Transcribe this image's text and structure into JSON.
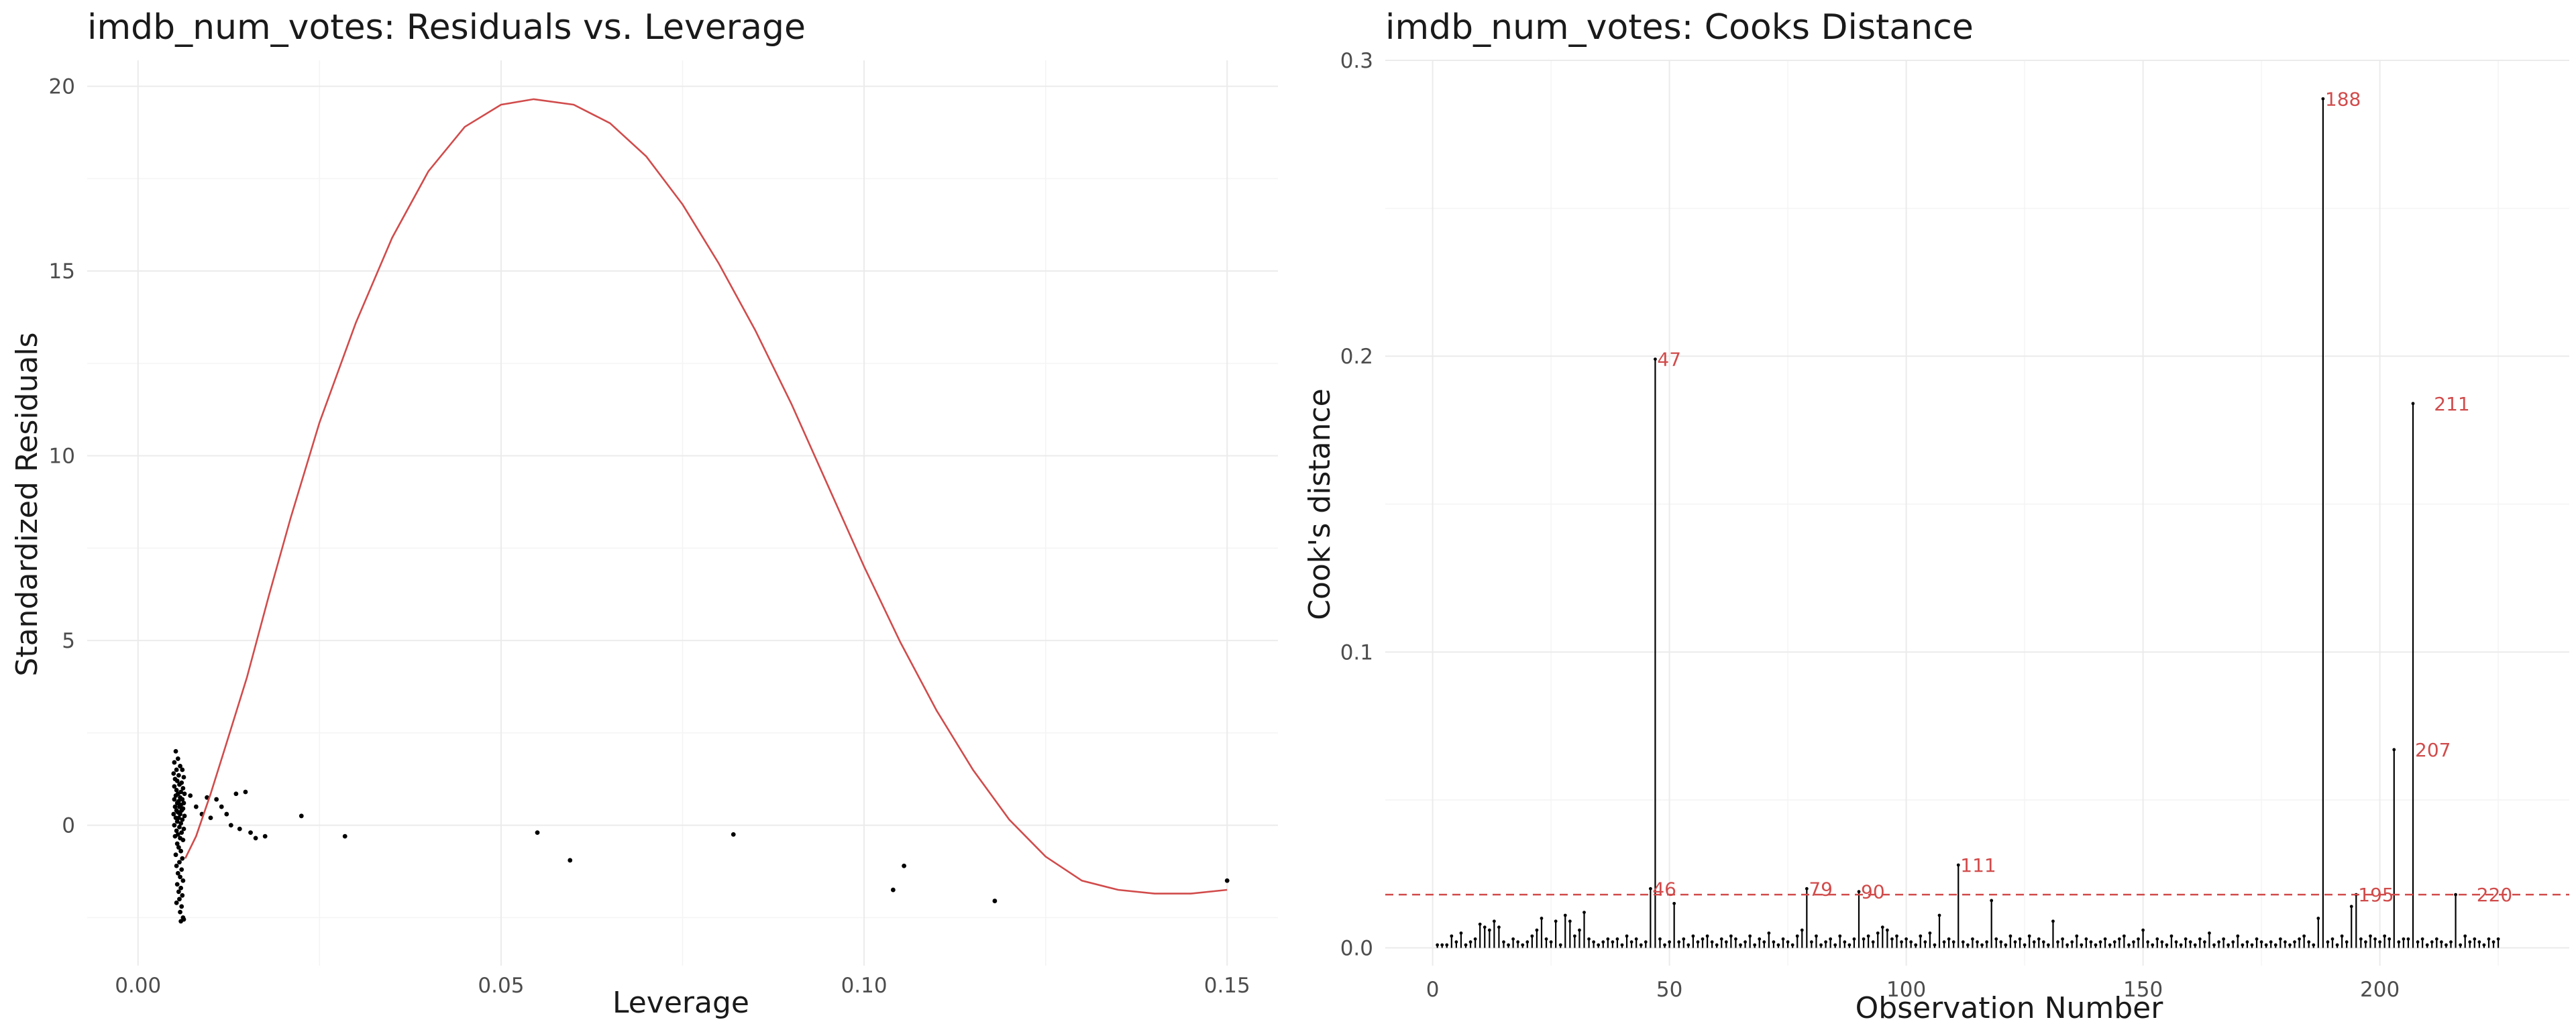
{
  "chart_data": [
    {
      "type": "scatter",
      "title": "imdb_num_votes: Residuals vs. Leverage",
      "xlabel": "Leverage",
      "ylabel": "Standardized Residuals",
      "xlim": [
        -0.007,
        0.157
      ],
      "ylim": [
        -3.8,
        20.7
      ],
      "xticks": [
        0,
        0.05,
        0.1,
        0.15
      ],
      "xtick_labels": [
        "0.00",
        "0.05",
        "0.10",
        "0.15"
      ],
      "yticks": [
        0,
        5,
        10,
        15,
        20
      ],
      "ytick_labels": [
        "0",
        "5",
        "10",
        "15",
        "20"
      ],
      "grid": true,
      "smooth_color": "#d14b4b",
      "point_color": "#000000",
      "points": [
        [
          0.0052,
          2.0
        ],
        [
          0.0055,
          1.8
        ],
        [
          0.005,
          1.7
        ],
        [
          0.0058,
          1.6
        ],
        [
          0.0053,
          1.5
        ],
        [
          0.0061,
          1.5
        ],
        [
          0.0049,
          1.4
        ],
        [
          0.0056,
          1.35
        ],
        [
          0.0063,
          1.3
        ],
        [
          0.0051,
          1.25
        ],
        [
          0.0054,
          1.2
        ],
        [
          0.006,
          1.15
        ],
        [
          0.0057,
          1.1
        ],
        [
          0.005,
          1.05
        ],
        [
          0.0062,
          1.0
        ],
        [
          0.0053,
          0.95
        ],
        [
          0.0059,
          0.9
        ],
        [
          0.0055,
          0.85
        ],
        [
          0.0064,
          0.85
        ],
        [
          0.0052,
          0.8
        ],
        [
          0.0058,
          0.75
        ],
        [
          0.0061,
          0.7
        ],
        [
          0.005,
          0.7
        ],
        [
          0.0056,
          0.65
        ],
        [
          0.0054,
          0.6
        ],
        [
          0.0063,
          0.6
        ],
        [
          0.0059,
          0.55
        ],
        [
          0.0051,
          0.5
        ],
        [
          0.0057,
          0.5
        ],
        [
          0.0062,
          0.45
        ],
        [
          0.0053,
          0.4
        ],
        [
          0.006,
          0.4
        ],
        [
          0.0055,
          0.35
        ],
        [
          0.0049,
          0.3
        ],
        [
          0.0058,
          0.3
        ],
        [
          0.0064,
          0.25
        ],
        [
          0.0052,
          0.2
        ],
        [
          0.0056,
          0.2
        ],
        [
          0.0061,
          0.15
        ],
        [
          0.0054,
          0.1
        ],
        [
          0.0059,
          0.05
        ],
        [
          0.005,
          0.0
        ],
        [
          0.0057,
          -0.05
        ],
        [
          0.0063,
          -0.1
        ],
        [
          0.0053,
          -0.15
        ],
        [
          0.006,
          -0.2
        ],
        [
          0.0055,
          -0.25
        ],
        [
          0.0051,
          -0.3
        ],
        [
          0.0058,
          -0.35
        ],
        [
          0.0062,
          -0.4
        ],
        [
          0.0054,
          -0.5
        ],
        [
          0.0056,
          -0.6
        ],
        [
          0.0059,
          -0.7
        ],
        [
          0.0052,
          -0.8
        ],
        [
          0.0061,
          -0.9
        ],
        [
          0.0057,
          -1.0
        ],
        [
          0.0053,
          -1.1
        ],
        [
          0.006,
          -1.2
        ],
        [
          0.0055,
          -1.3
        ],
        [
          0.0058,
          -1.4
        ],
        [
          0.0062,
          -1.5
        ],
        [
          0.0054,
          -1.6
        ],
        [
          0.0059,
          -1.7
        ],
        [
          0.0056,
          -1.8
        ],
        [
          0.0061,
          -1.9
        ],
        [
          0.0057,
          -2.0
        ],
        [
          0.0053,
          -2.1
        ],
        [
          0.006,
          -2.2
        ],
        [
          0.0058,
          -2.35
        ],
        [
          0.0062,
          -2.5
        ],
        [
          0.0059,
          -2.6
        ],
        [
          0.0063,
          -2.55
        ],
        [
          0.0072,
          0.8
        ],
        [
          0.008,
          0.5
        ],
        [
          0.0088,
          0.3
        ],
        [
          0.0095,
          0.75
        ],
        [
          0.01,
          0.2
        ],
        [
          0.0108,
          0.7
        ],
        [
          0.0115,
          0.5
        ],
        [
          0.0122,
          0.3
        ],
        [
          0.0128,
          0.0
        ],
        [
          0.0135,
          0.85
        ],
        [
          0.014,
          -0.1
        ],
        [
          0.0148,
          0.9
        ],
        [
          0.0155,
          -0.2
        ],
        [
          0.0162,
          -0.35
        ],
        [
          0.0175,
          -0.3
        ],
        [
          0.0225,
          0.25
        ],
        [
          0.0285,
          -0.3
        ],
        [
          0.055,
          -0.2
        ],
        [
          0.0595,
          -0.95
        ],
        [
          0.082,
          -0.25
        ],
        [
          0.104,
          -1.75
        ],
        [
          0.1055,
          -1.1
        ],
        [
          0.118,
          -2.05
        ],
        [
          0.15,
          -1.5
        ]
      ],
      "smooth_curve": [
        [
          0.0065,
          -0.9
        ],
        [
          0.008,
          -0.3
        ],
        [
          0.01,
          0.85
        ],
        [
          0.012,
          2.1
        ],
        [
          0.015,
          4.0
        ],
        [
          0.018,
          6.2
        ],
        [
          0.021,
          8.3
        ],
        [
          0.025,
          10.9
        ],
        [
          0.03,
          13.6
        ],
        [
          0.035,
          15.9
        ],
        [
          0.04,
          17.7
        ],
        [
          0.045,
          18.9
        ],
        [
          0.05,
          19.5
        ],
        [
          0.0545,
          19.65
        ],
        [
          0.06,
          19.5
        ],
        [
          0.065,
          19.0
        ],
        [
          0.07,
          18.1
        ],
        [
          0.075,
          16.8
        ],
        [
          0.08,
          15.2
        ],
        [
          0.085,
          13.4
        ],
        [
          0.09,
          11.4
        ],
        [
          0.095,
          9.2
        ],
        [
          0.1,
          7.0
        ],
        [
          0.105,
          4.95
        ],
        [
          0.11,
          3.1
        ],
        [
          0.115,
          1.5
        ],
        [
          0.12,
          0.15
        ],
        [
          0.125,
          -0.85
        ],
        [
          0.13,
          -1.5
        ],
        [
          0.135,
          -1.75
        ],
        [
          0.14,
          -1.85
        ],
        [
          0.145,
          -1.85
        ],
        [
          0.15,
          -1.75
        ]
      ]
    },
    {
      "type": "bar",
      "title": "imdb_num_votes: Cooks Distance",
      "xlabel": "Observation Number",
      "ylabel": "Cook's distance",
      "xlim": [
        -10,
        240
      ],
      "ylim": [
        -0.006,
        0.3
      ],
      "xticks": [
        0,
        50,
        100,
        150,
        200
      ],
      "xtick_labels": [
        "0",
        "50",
        "100",
        "150",
        "200"
      ],
      "yticks": [
        0,
        0.1,
        0.2,
        0.3
      ],
      "ytick_labels": [
        "0.0",
        "0.1",
        "0.2",
        "0.3"
      ],
      "threshold": 0.018,
      "grid": true,
      "bar_color": "#000000",
      "label_color": "#d14b4b",
      "highlighted": [
        {
          "obs": 46,
          "value": 0.02,
          "label": "46"
        },
        {
          "obs": 47,
          "value": 0.199,
          "label": "47"
        },
        {
          "obs": 79,
          "value": 0.02,
          "label": "79"
        },
        {
          "obs": 90,
          "value": 0.019,
          "label": "90"
        },
        {
          "obs": 111,
          "value": 0.028,
          "label": "111"
        },
        {
          "obs": 188,
          "value": 0.287,
          "label": "188"
        },
        {
          "obs": 195,
          "value": 0.018,
          "label": "195"
        },
        {
          "obs": 207,
          "value": 0.067,
          "label": "207"
        },
        {
          "obs": 211,
          "value": 0.184,
          "label": "211"
        },
        {
          "obs": 220,
          "value": 0.018,
          "label": "220"
        }
      ],
      "values": [
        0.001,
        0.001,
        0.001,
        0.004,
        0.002,
        0.005,
        0.001,
        0.002,
        0.003,
        0.008,
        0.007,
        0.006,
        0.009,
        0.007,
        0.002,
        0.001,
        0.003,
        0.002,
        0.001,
        0.002,
        0.004,
        0.006,
        0.01,
        0.003,
        0.002,
        0.009,
        0.001,
        0.011,
        0.009,
        0.004,
        0.006,
        0.012,
        0.003,
        0.002,
        0.001,
        0.002,
        0.003,
        0.002,
        0.003,
        0.001,
        0.004,
        0.002,
        0.003,
        0.001,
        0.002,
        0.02,
        0.199,
        0.003,
        0.001,
        0.002,
        0.015,
        0.002,
        0.003,
        0.001,
        0.004,
        0.002,
        0.003,
        0.004,
        0.002,
        0.001,
        0.003,
        0.002,
        0.004,
        0.003,
        0.001,
        0.002,
        0.004,
        0.001,
        0.003,
        0.002,
        0.005,
        0.002,
        0.001,
        0.003,
        0.002,
        0.001,
        0.004,
        0.006,
        0.02,
        0.002,
        0.004,
        0.001,
        0.002,
        0.003,
        0.001,
        0.004,
        0.002,
        0.001,
        0.003,
        0.019,
        0.003,
        0.004,
        0.002,
        0.005,
        0.007,
        0.006,
        0.003,
        0.004,
        0.002,
        0.003,
        0.002,
        0.001,
        0.004,
        0.002,
        0.005,
        0.001,
        0.011,
        0.002,
        0.003,
        0.002,
        0.028,
        0.002,
        0.001,
        0.003,
        0.002,
        0.001,
        0.002,
        0.016,
        0.003,
        0.002,
        0.001,
        0.004,
        0.002,
        0.003,
        0.001,
        0.004,
        0.002,
        0.003,
        0.002,
        0.001,
        0.009,
        0.002,
        0.003,
        0.001,
        0.002,
        0.004,
        0.001,
        0.003,
        0.002,
        0.001,
        0.002,
        0.003,
        0.001,
        0.002,
        0.003,
        0.004,
        0.001,
        0.002,
        0.003,
        0.006,
        0.002,
        0.001,
        0.003,
        0.002,
        0.001,
        0.004,
        0.002,
        0.001,
        0.003,
        0.002,
        0.001,
        0.003,
        0.002,
        0.005,
        0.001,
        0.002,
        0.003,
        0.001,
        0.002,
        0.004,
        0.001,
        0.002,
        0.001,
        0.003,
        0.002,
        0.001,
        0.002,
        0.001,
        0.003,
        0.002,
        0.001,
        0.002,
        0.003,
        0.004,
        0.002,
        0.001,
        0.01,
        0.287,
        0.002,
        0.003,
        0.001,
        0.004,
        0.002,
        0.014,
        0.018,
        0.003,
        0.002,
        0.004,
        0.003,
        0.002,
        0.004,
        0.003,
        0.067,
        0.002,
        0.003,
        0.003,
        0.184,
        0.002,
        0.003,
        0.001,
        0.002,
        0.003,
        0.002,
        0.001,
        0.002,
        0.018,
        0.001,
        0.004,
        0.002,
        0.003,
        0.002,
        0.001,
        0.003,
        0.002,
        0.003
      ]
    }
  ]
}
